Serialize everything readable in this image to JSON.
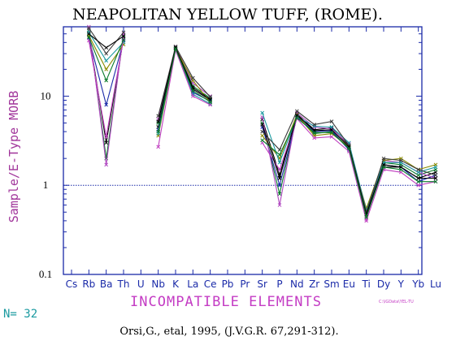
{
  "chart_data": {
    "type": "line",
    "title": "NEAPOLITAN YELLOW TUFF, (ROME).",
    "xlabel": "INCOMPATIBLE ELEMENTS",
    "ylabel": "Sample/E-Type MORB",
    "yscale": "log",
    "ylim": [
      0.1,
      60
    ],
    "yticks": [
      "0.1",
      "1",
      "10"
    ],
    "reference_line": 1,
    "grid": false,
    "categories": [
      "Cs",
      "Rb",
      "Ba",
      "Th",
      "U",
      "Nb",
      "K",
      "La",
      "Ce",
      "Pb",
      "Pr",
      "Sr",
      "P",
      "Nd",
      "Zr",
      "Sm",
      "Eu",
      "Ti",
      "Dy",
      "Y",
      "Yb",
      "Lu"
    ],
    "count_label": "N= 32",
    "citation": "Orsi,G., etal, 1995, (J.V.G.R. 67,291-312).",
    "file_note": "C:\\IGData\\YEL-TU",
    "colors": {
      "axes": "#1a2aa8",
      "reference": "#1a2aa8",
      "series_palette": [
        "#000000",
        "#0a7a2a",
        "#1a2aa8",
        "#b048c0",
        "#8a8a00",
        "#1a9aa0",
        "#c040c0",
        "#3a3a3a"
      ]
    },
    "series": [
      {
        "values": [
          null,
          50,
          3.0,
          45,
          null,
          4.5,
          34,
          12.0,
          9.0,
          null,
          null,
          5.5,
          1.3,
          6.3,
          4.2,
          4.4,
          2.8,
          0.5,
          1.6,
          1.6,
          1.2,
          1.4
        ]
      },
      {
        "values": [
          null,
          55,
          2.0,
          48,
          null,
          5.0,
          35,
          13.0,
          9.5,
          null,
          null,
          5.0,
          0.8,
          6.0,
          3.8,
          4.0,
          2.6,
          0.45,
          1.8,
          1.7,
          1.3,
          1.5
        ]
      },
      {
        "values": [
          null,
          45,
          8.0,
          42,
          null,
          4.2,
          33,
          11.0,
          8.8,
          null,
          null,
          4.5,
          1.0,
          5.8,
          4.0,
          4.1,
          2.5,
          0.48,
          1.7,
          1.6,
          1.1,
          1.3
        ]
      },
      {
        "values": [
          null,
          60,
          1.7,
          50,
          null,
          5.5,
          36,
          14.0,
          10.0,
          null,
          null,
          5.8,
          0.6,
          6.5,
          4.5,
          4.3,
          2.9,
          0.42,
          1.9,
          1.8,
          1.4,
          1.2
        ]
      },
      {
        "values": [
          null,
          48,
          20,
          38,
          null,
          3.6,
          34,
          15.0,
          8.5,
          null,
          null,
          3.6,
          2.0,
          6.2,
          3.6,
          3.8,
          2.7,
          0.55,
          1.9,
          2.0,
          1.5,
          1.7
        ]
      },
      {
        "values": [
          null,
          52,
          25,
          40,
          null,
          3.8,
          35,
          10.5,
          8.2,
          null,
          null,
          6.5,
          1.8,
          5.9,
          4.6,
          4.5,
          3.0,
          0.52,
          1.8,
          1.8,
          1.4,
          1.6
        ]
      },
      {
        "values": [
          null,
          42,
          3.5,
          44,
          null,
          2.7,
          33,
          10.0,
          8.0,
          null,
          null,
          3.0,
          1.5,
          5.6,
          3.4,
          3.5,
          2.4,
          0.4,
          1.5,
          1.4,
          1.0,
          1.1
        ]
      },
      {
        "values": [
          null,
          58,
          30,
          52,
          null,
          6.0,
          36,
          16.0,
          9.8,
          null,
          null,
          4.0,
          2.5,
          6.8,
          4.8,
          5.2,
          2.8,
          0.5,
          2.0,
          1.9,
          1.5,
          1.3
        ]
      },
      {
        "values": [
          null,
          50,
          35,
          47,
          null,
          5.2,
          35,
          12.5,
          9.2,
          null,
          null,
          4.8,
          1.2,
          6.1,
          4.1,
          4.2,
          2.7,
          0.47,
          1.7,
          1.6,
          1.2,
          1.2
        ]
      },
      {
        "values": [
          null,
          46,
          15,
          43,
          null,
          4.0,
          34,
          11.5,
          8.6,
          null,
          null,
          3.2,
          2.2,
          5.7,
          3.9,
          3.9,
          2.6,
          0.44,
          1.6,
          1.5,
          1.1,
          1.1
        ]
      }
    ]
  }
}
